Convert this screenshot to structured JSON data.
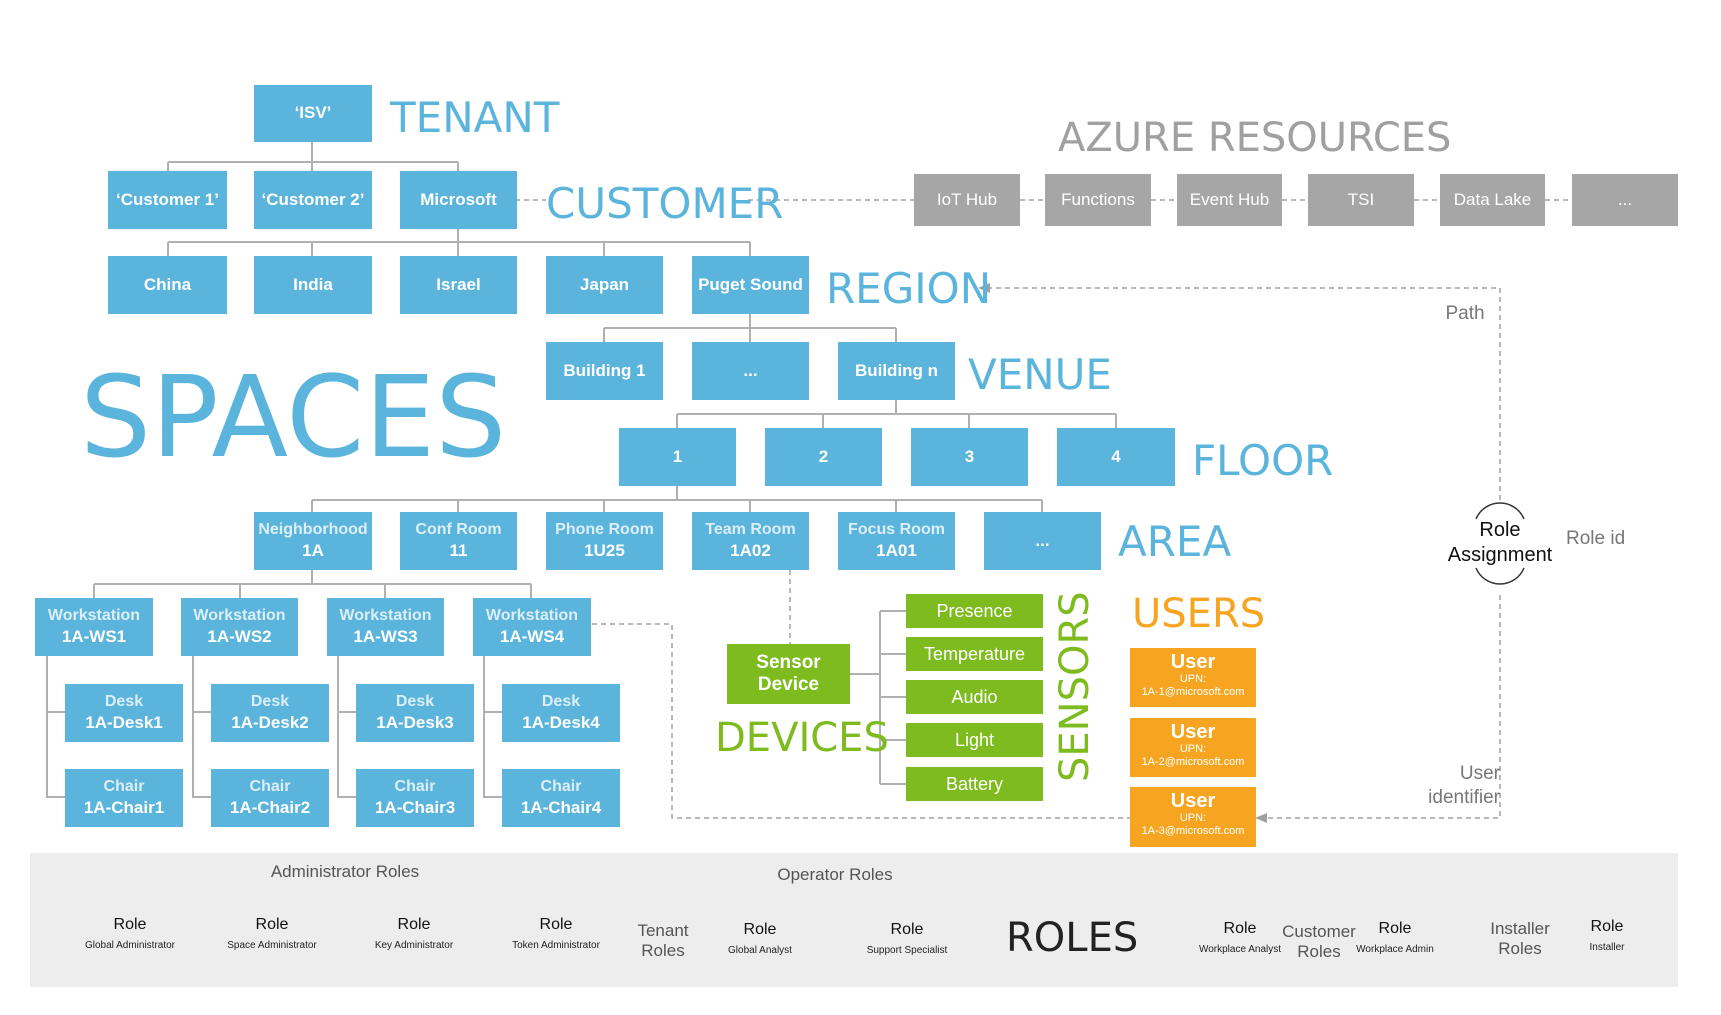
{
  "tiers": {
    "tenant": "TENANT",
    "customer": "CUSTOMER",
    "region": "REGION",
    "venue": "VENUE",
    "floor": "FLOOR",
    "area": "AREA",
    "spaces": "SPACES",
    "devices": "DEVICES",
    "sensors": "SENSORS",
    "users": "USERS",
    "roles": "ROLES"
  },
  "azure": {
    "title": "AZURE RESOURCES",
    "items": [
      "IoT Hub",
      "Functions",
      "Event Hub",
      "TSI",
      "Data Lake",
      "..."
    ]
  },
  "tenant_box": "‘ISV’",
  "customers": [
    "‘Customer 1’",
    "‘Customer 2’",
    "Microsoft"
  ],
  "regions": [
    "China",
    "India",
    "Israel",
    "Japan",
    "Puget Sound"
  ],
  "venues": [
    "Building 1",
    "...",
    "Building n"
  ],
  "floors": [
    "1",
    "2",
    "3",
    "4"
  ],
  "areas": [
    {
      "l1": "Neighborhood",
      "l2": "1A"
    },
    {
      "l1": "Conf Room",
      "l2": "11"
    },
    {
      "l1": "Phone Room",
      "l2": "1U25"
    },
    {
      "l1": "Team Room",
      "l2": "1A02"
    },
    {
      "l1": "Focus Room",
      "l2": "1A01"
    },
    {
      "l1": "...",
      "l2": ""
    }
  ],
  "workstations": [
    {
      "l1": "Workstation",
      "l2": "1A-WS1"
    },
    {
      "l1": "Workstation",
      "l2": "1A-WS2"
    },
    {
      "l1": "Workstation",
      "l2": "1A-WS3"
    },
    {
      "l1": "Workstation",
      "l2": "1A-WS4"
    }
  ],
  "desks": [
    {
      "l1": "Desk",
      "l2": "1A-Desk1"
    },
    {
      "l1": "Desk",
      "l2": "1A-Desk2"
    },
    {
      "l1": "Desk",
      "l2": "1A-Desk3"
    },
    {
      "l1": "Desk",
      "l2": "1A-Desk4"
    }
  ],
  "chairs": [
    {
      "l1": "Chair",
      "l2": "1A-Chair1"
    },
    {
      "l1": "Chair",
      "l2": "1A-Chair2"
    },
    {
      "l1": "Chair",
      "l2": "1A-Chair3"
    },
    {
      "l1": "Chair",
      "l2": "1A-Chair4"
    }
  ],
  "device": {
    "l1": "Sensor",
    "l2": "Device"
  },
  "sensors": [
    "Presence",
    "Temperature",
    "Audio",
    "Light",
    "Battery"
  ],
  "users": [
    {
      "title": "User",
      "upn_label": "UPN:",
      "upn": "1A-1@microsoft.com"
    },
    {
      "title": "User",
      "upn_label": "UPN:",
      "upn": "1A-2@microsoft.com"
    },
    {
      "title": "User",
      "upn_label": "UPN:",
      "upn": "1A-3@microsoft.com"
    }
  ],
  "role_assignment": {
    "l1": "Role",
    "l2": "Assignment"
  },
  "notes": {
    "path": "Path",
    "role_id": "Role id",
    "user_id_1": "User",
    "user_id_2": "identifier"
  },
  "role_groups": {
    "administrator": "Administrator Roles",
    "operator": "Operator Roles",
    "tenant_1": "Tenant",
    "tenant_2": "Roles",
    "customer_1": "Customer",
    "customer_2": "Roles",
    "installer_1": "Installer",
    "installer_2": "Roles"
  },
  "role_word": "Role",
  "roles": [
    "Global Administrator",
    "Space Administrator",
    "Key Administrator",
    "Token Administrator",
    "Global Analyst",
    "Support Specialist",
    "Workplace Analyst",
    "Workplace Admin",
    "Installer"
  ],
  "colors": {
    "space_blue": "#5ab4dc",
    "azure_gray": "#a6a6a6",
    "device_green": "#7dbb1e",
    "user_orange": "#f7a521",
    "roles_band": "#ededed"
  }
}
